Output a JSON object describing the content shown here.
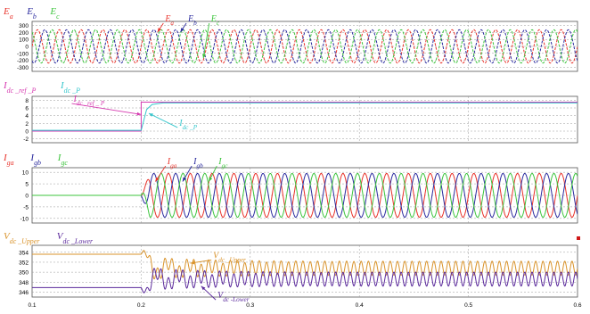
{
  "colors": {
    "red": "#e8332b",
    "blue": "#2a2a9e",
    "green": "#3cc43c",
    "cyan": "#35c6cc",
    "magenta": "#d63ab0",
    "orange": "#d9932b",
    "purple": "#5b2a9c",
    "grid": "#9a9a9a",
    "text": "#000000",
    "bg": "#ffffff",
    "marker": "#d01818"
  },
  "chart_data": [
    {
      "id": "voltage",
      "type": "line",
      "legend": [
        {
          "base": "E",
          "sub": "a",
          "color": "red"
        },
        {
          "base": "E",
          "sub": "b",
          "color": "blue"
        },
        {
          "base": "E",
          "sub": "c",
          "color": "green"
        }
      ],
      "annotations": [
        {
          "base": "E",
          "sub": "a",
          "color": "red",
          "x": 0.222,
          "y": 360,
          "tip": [
            0.215,
            205
          ]
        },
        {
          "base": "E",
          "sub": "b",
          "color": "blue",
          "x": 0.243,
          "y": 360,
          "tip": [
            0.236,
            205
          ]
        },
        {
          "base": "E",
          "sub": "c",
          "color": "green",
          "x": 0.264,
          "y": 360,
          "tip": [
            0.257,
            -170
          ]
        }
      ],
      "yticks": [
        300,
        200,
        100,
        0,
        -100,
        -200,
        -300
      ],
      "ylim": [
        -360,
        360
      ],
      "xlim": [
        0.1,
        0.6
      ],
      "series": [
        {
          "color": "red",
          "amplitude": 240,
          "freq_hz": 50,
          "phase_deg": 0,
          "style": "dashed"
        },
        {
          "color": "blue",
          "amplitude": 240,
          "freq_hz": 50,
          "phase_deg": -120,
          "style": "dashed"
        },
        {
          "color": "green",
          "amplitude": 240,
          "freq_hz": 50,
          "phase_deg": 120,
          "style": "dashed"
        }
      ]
    },
    {
      "id": "dc-current",
      "type": "line",
      "legend": [
        {
          "base": "I",
          "sub": "dc _ref _P",
          "color": "magenta"
        },
        {
          "base": "I",
          "sub": "dc _P",
          "color": "cyan"
        }
      ],
      "annotations": [
        {
          "base": "I",
          "sub": "dc _ref _ P",
          "color": "magenta",
          "x": 0.138,
          "y": 7.6,
          "tip": [
            0.2,
            4.3
          ]
        },
        {
          "base": "I",
          "sub": "dc _P",
          "color": "cyan",
          "x": 0.235,
          "y": 1.4,
          "tip": [
            0.207,
            4.6
          ]
        }
      ],
      "yticks": [
        8,
        6,
        4,
        2,
        0,
        -2
      ],
      "ylim": [
        -3,
        9
      ],
      "xlim": [
        0.1,
        0.6
      ],
      "series": [
        {
          "color": "magenta",
          "name_ref": "reference",
          "x": [
            0.1,
            0.2,
            0.2,
            0.6
          ],
          "y": [
            0,
            0,
            7.5,
            7.5
          ]
        },
        {
          "color": "cyan",
          "name_ref": "measured",
          "x": [
            0.1,
            0.2,
            0.205,
            0.21,
            0.22,
            0.6
          ],
          "y": [
            0.2,
            0.2,
            5.6,
            6.9,
            7.3,
            7.3
          ]
        }
      ]
    },
    {
      "id": "ac-current",
      "type": "line",
      "legend": [
        {
          "base": "I",
          "sub": "ga",
          "color": "red"
        },
        {
          "base": "I",
          "sub": "gb",
          "color": "blue"
        },
        {
          "base": "I",
          "sub": "gc",
          "color": "green"
        }
      ],
      "annotations": [
        {
          "base": "I",
          "sub": "ga",
          "color": "red",
          "x": 0.224,
          "y": 13.5,
          "tip": [
            0.213,
            6
          ]
        },
        {
          "base": "I",
          "sub": "gb",
          "color": "blue",
          "x": 0.248,
          "y": 13.5,
          "tip": [
            0.238,
            6
          ]
        },
        {
          "base": "I",
          "sub": "gc",
          "color": "green",
          "x": 0.271,
          "y": 13.5,
          "tip": [
            0.262,
            6
          ]
        }
      ],
      "yticks": [
        10,
        5,
        0,
        -5,
        -10
      ],
      "ylim": [
        -12,
        12
      ],
      "xlim": [
        0.1,
        0.6
      ],
      "series": [
        {
          "color": "red",
          "amplitude": 9.5,
          "freq_hz": 50,
          "phase_deg": 0,
          "start_x": 0.2
        },
        {
          "color": "blue",
          "amplitude": 9.5,
          "freq_hz": 50,
          "phase_deg": -120,
          "start_x": 0.2
        },
        {
          "color": "green",
          "amplitude": 9.5,
          "freq_hz": 50,
          "phase_deg": 120,
          "start_x": 0.2
        }
      ]
    },
    {
      "id": "dc-voltage",
      "type": "line",
      "legend": [
        {
          "base": "V",
          "sub": "dc _Upper",
          "color": "orange"
        },
        {
          "base": "V",
          "sub": "dc _Lower",
          "color": "purple"
        }
      ],
      "annotations": [
        {
          "base": "V",
          "sub": "dc _Upper",
          "color": "orange",
          "x": 0.266,
          "y": 352.8,
          "tip": [
            0.245,
            351.8
          ]
        },
        {
          "base": "V",
          "sub": "dc -Lower",
          "color": "purple",
          "x": 0.27,
          "y": 344.8,
          "tip": [
            0.255,
            347.2
          ]
        }
      ],
      "yticks": [
        354,
        352,
        350,
        348,
        346
      ],
      "ylim": [
        345,
        355.4
      ],
      "xlim": [
        0.1,
        0.6
      ],
      "xticks": [
        0.1,
        0.2,
        0.3,
        0.4,
        0.5,
        0.6
      ],
      "series": [
        {
          "color": "orange",
          "pre_value": 353.6,
          "post_mean": 350.8,
          "post_ripple": 1.4
        },
        {
          "color": "purple",
          "pre_value": 346.9,
          "post_mean": 348.6,
          "post_ripple": 1.4
        }
      ]
    }
  ]
}
